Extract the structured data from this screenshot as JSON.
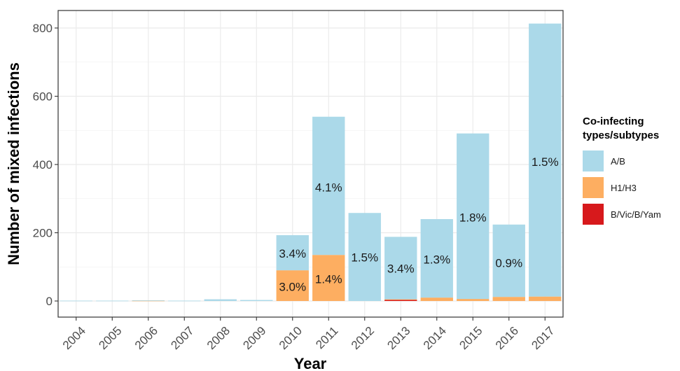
{
  "chart_data": {
    "type": "bar",
    "stacked": true,
    "xlabel": "Year",
    "ylabel": "Number of mixed infections",
    "ylim": [
      0,
      825
    ],
    "yticks": [
      0,
      200,
      400,
      600,
      800
    ],
    "grid": true,
    "legend_position": "right",
    "legend_title_lines": [
      "Co-infecting",
      "types/subtypes"
    ],
    "categories": [
      "2004",
      "2005",
      "2006",
      "2007",
      "2008",
      "2009",
      "2010",
      "2011",
      "2012",
      "2013",
      "2014",
      "2015",
      "2016",
      "2017"
    ],
    "series": [
      {
        "name": "B/Vic/B/Yam",
        "color": "#d7191c",
        "values": [
          0,
          0,
          0,
          0,
          0,
          0,
          0,
          0,
          0,
          3,
          0,
          0,
          0,
          0
        ]
      },
      {
        "name": "H1/H3",
        "color": "#fdae61",
        "values": [
          0,
          0,
          1,
          0,
          0,
          0,
          90,
          135,
          0,
          2,
          10,
          6,
          12,
          13
        ]
      },
      {
        "name": "A/B",
        "color": "#abd9e9",
        "values": [
          1,
          1,
          1,
          1,
          5,
          3,
          103,
          405,
          258,
          183,
          230,
          485,
          212,
          800
        ]
      }
    ],
    "legend_order": [
      "A/B",
      "H1/H3",
      "B/Vic/B/Yam"
    ],
    "annotations": [
      {
        "category": "2010",
        "y": 140,
        "text": "3.4%"
      },
      {
        "category": "2010",
        "y": 42,
        "text": "3.0%"
      },
      {
        "category": "2011",
        "y": 333,
        "text": "4.1%"
      },
      {
        "category": "2011",
        "y": 65,
        "text": "1.4%"
      },
      {
        "category": "2012",
        "y": 128,
        "text": "1.5%"
      },
      {
        "category": "2013",
        "y": 95,
        "text": "3.4%"
      },
      {
        "category": "2014",
        "y": 122,
        "text": "1.3%"
      },
      {
        "category": "2015",
        "y": 245,
        "text": "1.8%"
      },
      {
        "category": "2016",
        "y": 112,
        "text": "0.9%"
      },
      {
        "category": "2017",
        "y": 408,
        "text": "1.5%"
      }
    ]
  }
}
